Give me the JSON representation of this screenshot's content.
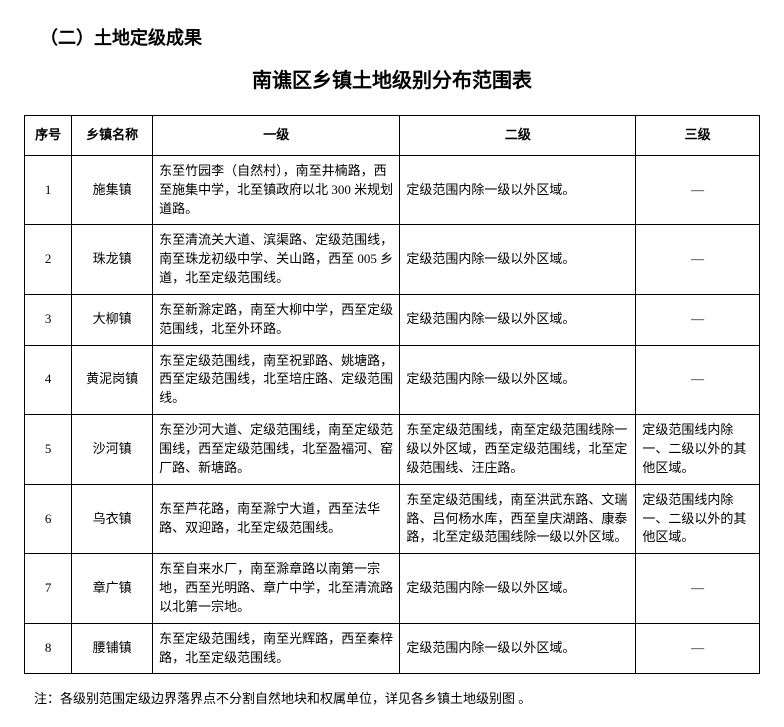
{
  "section_heading": "（二）土地定级成果",
  "main_title": "南谯区乡镇土地级别分布范围表",
  "columns": {
    "idx": "序号",
    "name": "乡镇名称",
    "l1": "一级",
    "l2": "二级",
    "l3": "三级"
  },
  "dash": "—",
  "rows": [
    {
      "idx": "1",
      "name": "施集镇",
      "l1": "东至竹园李（自然村），南至井楠路，西至施集中学，北至镇政府以北 300 米规划道路。",
      "l2": "定级范围内除一级以外区域。",
      "l3": "—"
    },
    {
      "idx": "2",
      "name": "珠龙镇",
      "l1": "东至清流关大道、滨渠路、定级范围线，南至珠龙初级中学、关山路，西至 005 乡道，北至定级范围线。",
      "l2": "定级范围内除一级以外区域。",
      "l3": "—"
    },
    {
      "idx": "3",
      "name": "大柳镇",
      "l1": "东至新滁定路，南至大柳中学，西至定级范围线，北至外环路。",
      "l2": "定级范围内除一级以外区域。",
      "l3": "—"
    },
    {
      "idx": "4",
      "name": "黄泥岗镇",
      "l1": "东至定级范围线，南至祝郢路、姚塘路，西至定级范围线，北至培庄路、定级范围线。",
      "l2": "定级范围内除一级以外区域。",
      "l3": "—"
    },
    {
      "idx": "5",
      "name": "沙河镇",
      "l1": "东至沙河大道、定级范围线，南至定级范围线，西至定级范围线，北至盈福河、窑厂路、新塘路。",
      "l2": "东至定级范围线，南至定级范围线除一级以外区域，西至定级范围线，北至定级范围线、汪庄路。",
      "l3": "定级范围线内除一、二级以外的其他区域。"
    },
    {
      "idx": "6",
      "name": "乌衣镇",
      "l1": "东至芦花路，南至滁宁大道，西至法华路、双迎路，北至定级范围线。",
      "l2": "东至定级范围线，南至洪武东路、文瑞路、吕何杨水库，西至皇庆湖路、康泰路，北至定级范围线除一级以外区域。",
      "l3": "定级范围线内除一、二级以外的其他区域。"
    },
    {
      "idx": "7",
      "name": "章广镇",
      "l1": "东至自来水厂，南至滁章路以南第一宗地，西至光明路、章广中学，北至清流路以北第一宗地。",
      "l2": "定级范围内除一级以外区域。",
      "l3": "—"
    },
    {
      "idx": "8",
      "name": "腰铺镇",
      "l1": "东至定级范围线，南至光辉路，西至秦梓路，北至定级范围线。",
      "l2": "定级范围内除一级以外区域。",
      "l3": "—"
    }
  ],
  "footnote": "注：各级别范围定级边界落界点不分割自然地块和权属单位，详见各乡镇土地级别图 。"
}
